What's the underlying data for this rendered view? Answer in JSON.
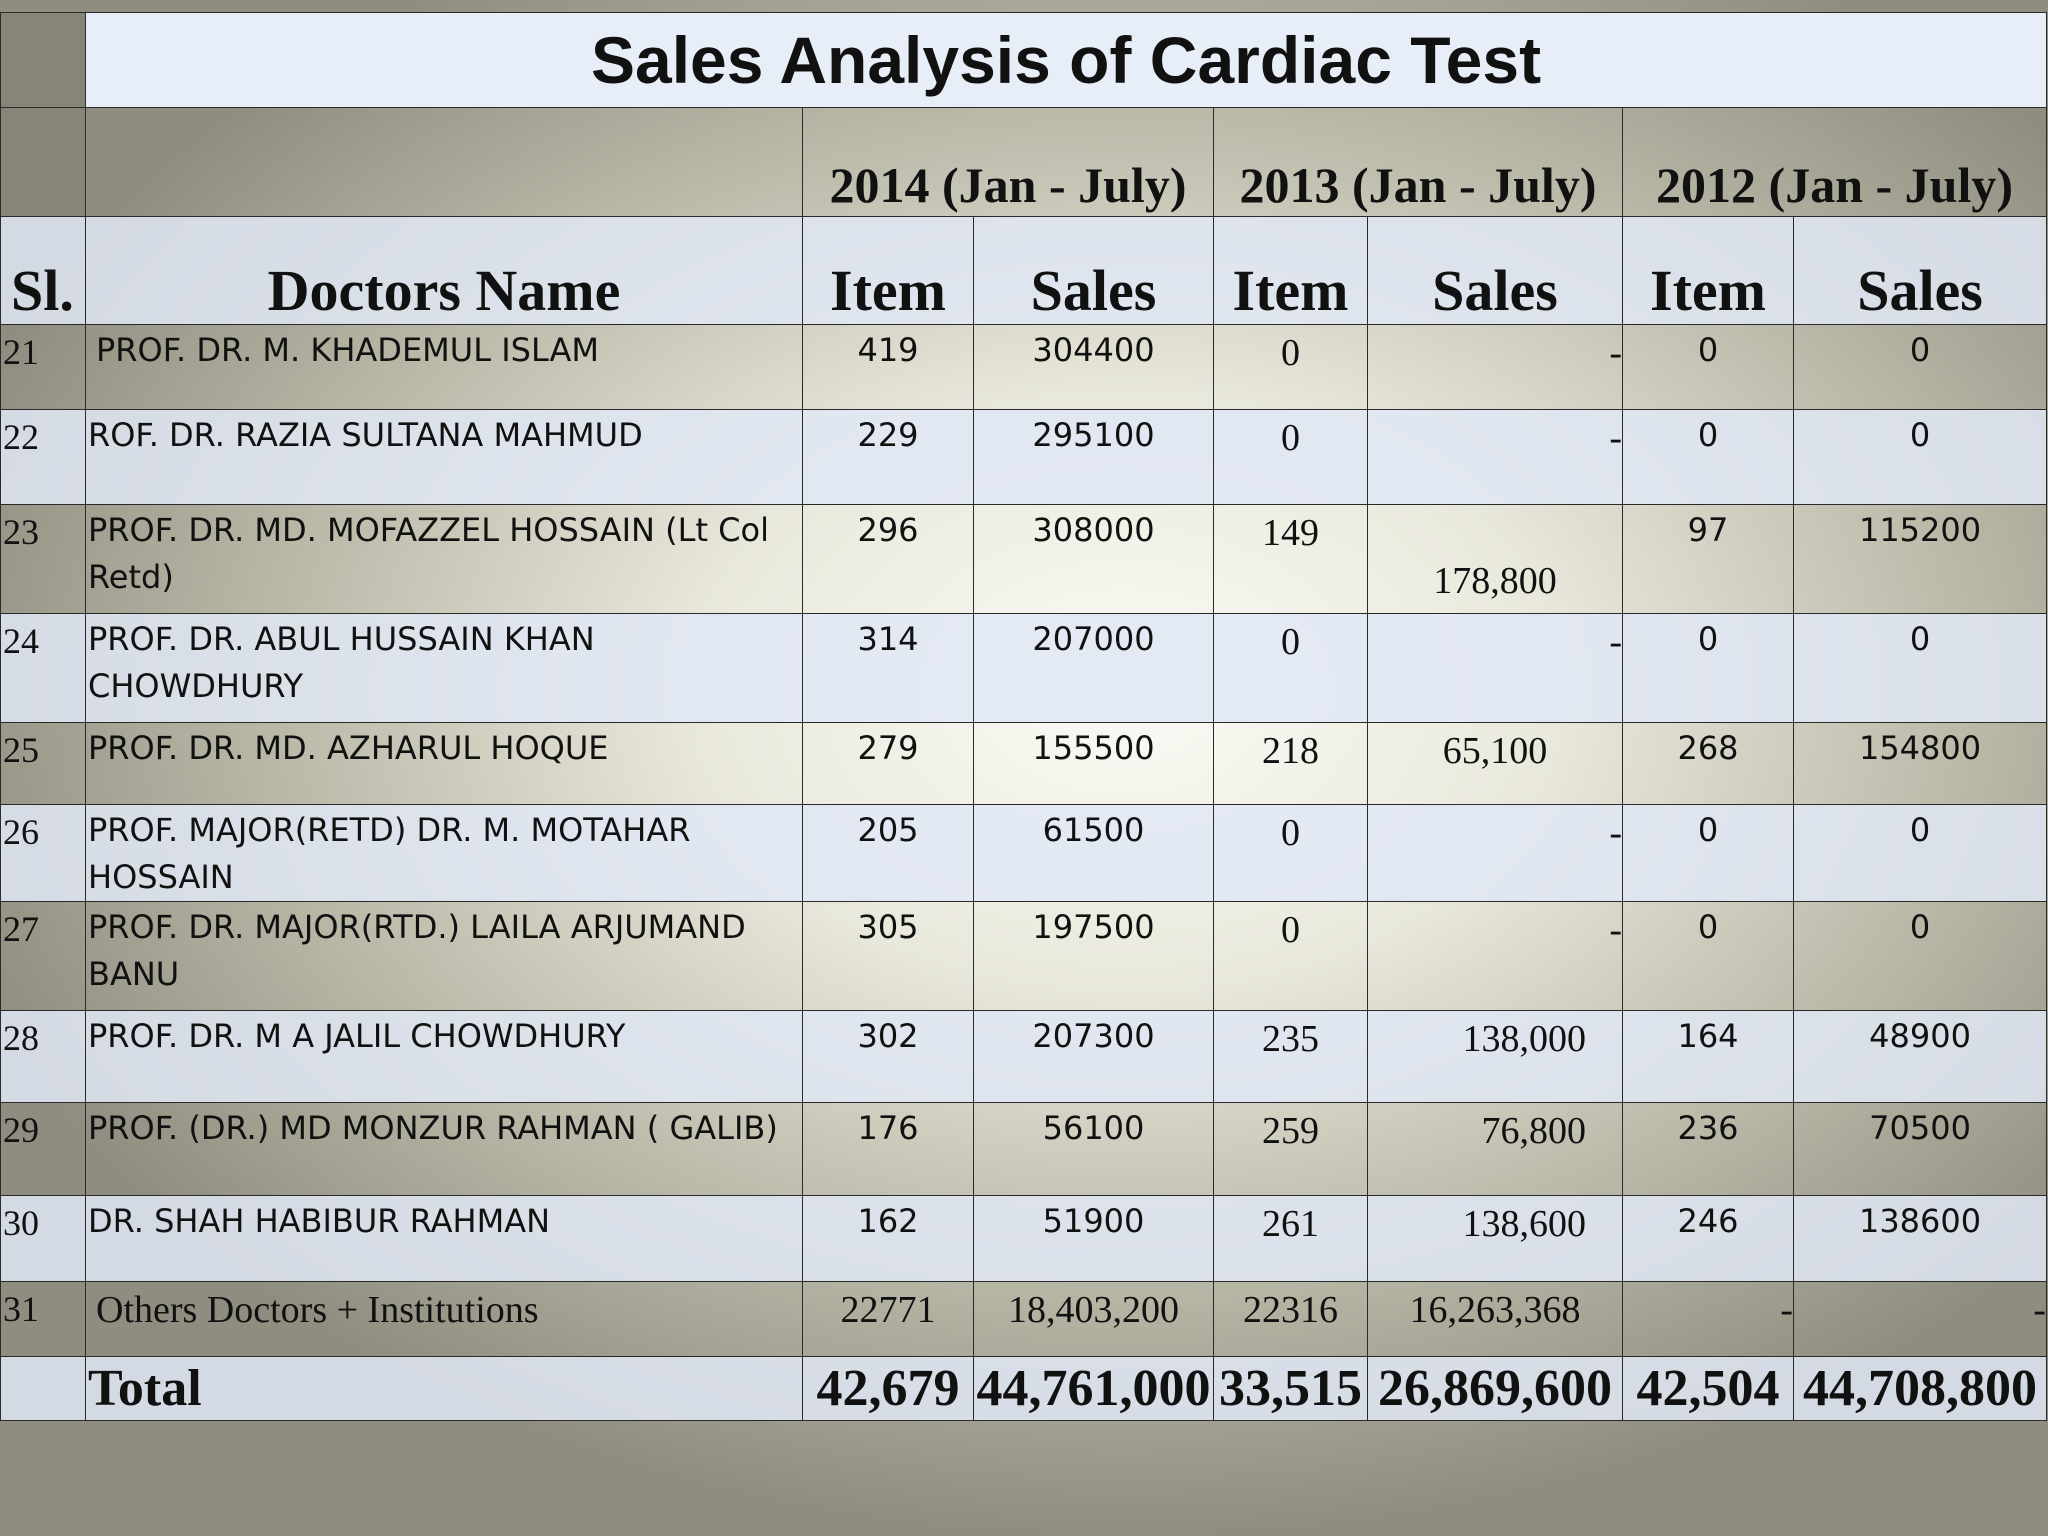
{
  "title": "Sales Analysis of Cardiac Test",
  "periods": [
    "2014 (Jan - July)",
    "2013 (Jan - July)",
    "2012 (Jan - July)"
  ],
  "headers": {
    "sl": "Sl.",
    "name": "Doctors Name",
    "item": "Item",
    "sales": "Sales"
  },
  "rows": [
    {
      "sl": "21",
      "name": " PROF. DR. M. KHADEMUL ISLAM",
      "i14": "419",
      "s14": "304400",
      "i13": "0",
      "s13": "-",
      "i12": "0",
      "s12": "0"
    },
    {
      "sl": "22",
      "name": "ROF. DR. RAZIA SULTANA MAHMUD",
      "i14": "229",
      "s14": "295100",
      "i13": "0",
      "s13": "-",
      "i12": "0",
      "s12": "0"
    },
    {
      "sl": "23",
      "name": "PROF. DR. MD. MOFAZZEL HOSSAIN (Lt Col Retd)",
      "i14": "296",
      "s14": "308000",
      "i13": "149",
      "s13": "178,800",
      "i12": "97",
      "s12": "115200"
    },
    {
      "sl": "24",
      "name": " PROF. DR. ABUL HUSSAIN KHAN CHOWDHURY",
      "i14": "314",
      "s14": "207000",
      "i13": "0",
      "s13": "-",
      "i12": "0",
      "s12": "0"
    },
    {
      "sl": "25",
      "name": "PROF. DR. MD. AZHARUL HOQUE",
      "i14": "279",
      "s14": "155500",
      "i13": "218",
      "s13": "65,100",
      "i12": "268",
      "s12": "154800"
    },
    {
      "sl": "26",
      "name": " PROF. MAJOR(RETD) DR. M. MOTAHAR HOSSAIN",
      "i14": "205",
      "s14": "61500",
      "i13": "0",
      "s13": "-",
      "i12": "0",
      "s12": "0"
    },
    {
      "sl": "27",
      "name": " PROF. DR. MAJOR(RTD.) LAILA ARJUMAND BANU",
      "i14": "305",
      "s14": "197500",
      "i13": "0",
      "s13": "-",
      "i12": "0",
      "s12": "0"
    },
    {
      "sl": "28",
      "name": "PROF. DR. M A JALIL CHOWDHURY",
      "i14": "302",
      "s14": "207300",
      "i13": "235",
      "s13": "138,000",
      "i12": "164",
      "s12": "48900"
    },
    {
      "sl": "29",
      "name": "PROF. (DR.) MD MONZUR RAHMAN ( GALIB)",
      "i14": "176",
      "s14": "56100",
      "i13": "259",
      "s13": "76,800",
      "i12": "236",
      "s12": "70500"
    },
    {
      "sl": "30",
      "name": "DR. SHAH HABIBUR RAHMAN",
      "i14": "162",
      "s14": "51900",
      "i13": "261",
      "s13": "138,600",
      "i12": "246",
      "s12": "138600"
    },
    {
      "sl": "31",
      "name": "Others Doctors + Institutions",
      "i14": "22771",
      "s14": "18,403,200",
      "i13": "22316",
      "s13": "16,263,368",
      "i12": "-",
      "s12": "-"
    }
  ],
  "total": {
    "label": "Total",
    "i14": "42,679",
    "s14": "44,761,000",
    "i13": "33,515",
    "s13": "26,869,600",
    "i12": "42,504",
    "s12": "44,708,800"
  }
}
